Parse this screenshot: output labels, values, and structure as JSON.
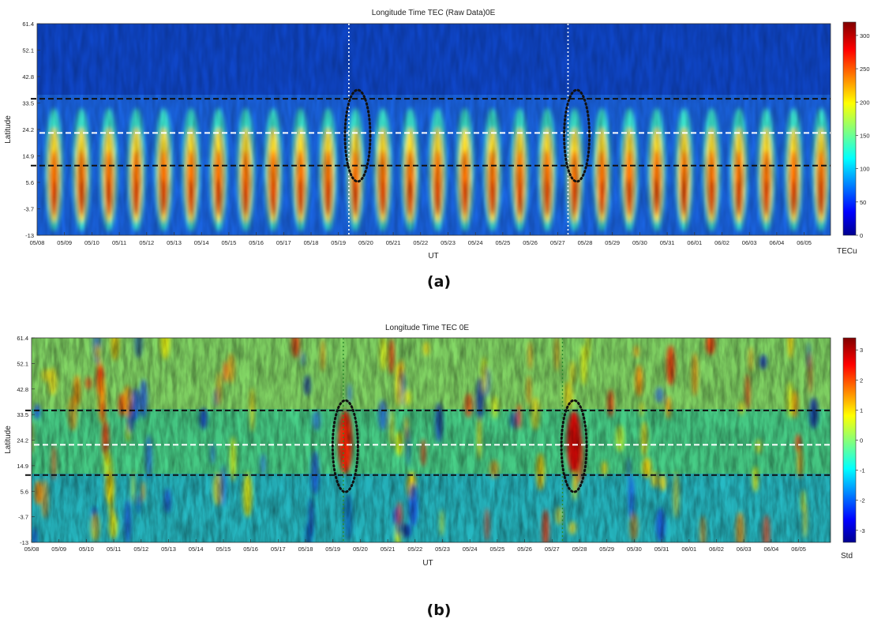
{
  "chart_data": [
    {
      "type": "heatmap",
      "panel_label": "(a)",
      "title": "Longitude Time TEC (Raw Data)0E",
      "xlabel": "UT",
      "ylabel": "Latitude",
      "x_ticks": [
        "05/08",
        "05/09",
        "05/10",
        "05/11",
        "05/12",
        "05/13",
        "05/14",
        "05/15",
        "05/16",
        "05/17",
        "05/18",
        "05/19",
        "05/20",
        "05/21",
        "05/22",
        "05/23",
        "05/24",
        "05/25",
        "05/26",
        "05/27",
        "05/28",
        "05/29",
        "05/30",
        "05/31",
        "06/01",
        "06/02",
        "06/03",
        "06/04",
        "06/05"
      ],
      "y_ticks": [
        "61.4",
        "52.1",
        "42.8",
        "33.5",
        "24.2",
        "14.9",
        "5.6",
        "-3.7",
        "-13"
      ],
      "ylim": [
        -13,
        61.4
      ],
      "colorbar": {
        "label": "TECu",
        "ticks": [
          "0",
          "50",
          "100",
          "150",
          "200",
          "250",
          "300"
        ],
        "range": [
          0,
          320
        ]
      },
      "horizontal_lines": [
        {
          "latitude": 35,
          "style": "black-dashed"
        },
        {
          "latitude": 23,
          "style": "white-dashed"
        },
        {
          "latitude": 11.5,
          "style": "black-dashed"
        }
      ],
      "vertical_lines": [
        {
          "date_index": 11.38,
          "style": "white-dotted"
        },
        {
          "date_index": 19.38,
          "style": "white-dotted"
        }
      ],
      "highlight_ellipses": [
        {
          "date_index": 11.7,
          "latitude": 22,
          "style": "black-dotted"
        },
        {
          "date_index": 19.7,
          "latitude": 22,
          "style": "black-dotted"
        }
      ],
      "colors": {
        "low": "#000080",
        "mid": "#00c0ff",
        "high": "#800000"
      }
    },
    {
      "type": "heatmap",
      "panel_label": "(b)",
      "title": "Longitude Time TEC 0E",
      "xlabel": "UT",
      "ylabel": "Latitude",
      "x_ticks": [
        "05/08",
        "05/09",
        "05/10",
        "05/11",
        "05/12",
        "05/13",
        "05/14",
        "05/15",
        "05/16",
        "05/17",
        "05/18",
        "05/19",
        "05/20",
        "05/21",
        "05/22",
        "05/23",
        "05/24",
        "05/25",
        "05/26",
        "05/27",
        "05/28",
        "05/29",
        "05/30",
        "05/31",
        "06/01",
        "06/02",
        "06/03",
        "06/04",
        "06/05"
      ],
      "y_ticks": [
        "61.4",
        "52.1",
        "42.8",
        "33.5",
        "24.2",
        "14.9",
        "5.6",
        "-3.7",
        "-13"
      ],
      "ylim": [
        -13,
        61.4
      ],
      "colorbar": {
        "label": "Std",
        "ticks": [
          "3",
          "2",
          "1",
          "0",
          "-1",
          "-2",
          "-3"
        ],
        "range": [
          -3.4,
          3.4
        ]
      },
      "horizontal_lines": [
        {
          "latitude": 35,
          "style": "black-dashed"
        },
        {
          "latitude": 22.5,
          "style": "white-dashed"
        },
        {
          "latitude": 11.5,
          "style": "black-dashed"
        }
      ],
      "vertical_lines": [
        {
          "date_index": 11.38,
          "style": "green-dotted"
        },
        {
          "date_index": 19.38,
          "style": "green-dotted"
        }
      ],
      "highlight_ellipses": [
        {
          "date_index": 11.45,
          "latitude": 22,
          "style": "black-dotted"
        },
        {
          "date_index": 19.8,
          "latitude": 22,
          "style": "black-dotted"
        }
      ],
      "colors": {
        "low": "#000080",
        "mid": "#60ff60",
        "high": "#800000"
      }
    }
  ]
}
